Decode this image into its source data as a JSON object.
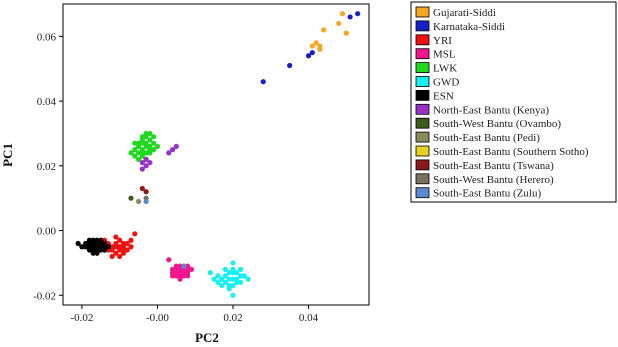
{
  "chart_data": {
    "type": "scatter",
    "title": "",
    "xlabel": "PC2",
    "ylabel": "PC1",
    "xlim": [
      -0.025,
      0.056
    ],
    "ylim": [
      -0.023,
      0.07
    ],
    "xticks": [
      -0.02,
      0.0,
      0.02,
      0.04
    ],
    "xtick_labels": [
      "-0.02",
      "-0.00",
      "0.02",
      "0.04"
    ],
    "yticks": [
      -0.02,
      0.0,
      0.02,
      0.04,
      0.06
    ],
    "ytick_labels": [
      "-0.02",
      "0.00",
      "0.02",
      "0.04",
      "0.06"
    ],
    "grid": false,
    "legend_position": "outside-right",
    "series": [
      {
        "name": "Gujarati-Siddi",
        "color": "#f5a623",
        "points": [
          [
            0.041,
            0.057
          ],
          [
            0.042,
            0.058
          ],
          [
            0.043,
            0.057
          ],
          [
            0.044,
            0.062
          ],
          [
            0.048,
            0.064
          ],
          [
            0.049,
            0.067
          ],
          [
            0.05,
            0.061
          ],
          [
            0.043,
            0.056
          ]
        ]
      },
      {
        "name": "Karnataka-Siddi",
        "color": "#1520c8",
        "points": [
          [
            0.028,
            0.046
          ],
          [
            0.035,
            0.051
          ],
          [
            0.04,
            0.054
          ],
          [
            0.041,
            0.055
          ],
          [
            0.051,
            0.066
          ],
          [
            0.053,
            0.067
          ]
        ]
      },
      {
        "name": "YRI",
        "color": "#f01010",
        "points": [
          [
            -0.012,
            -0.005
          ],
          [
            -0.011,
            -0.004
          ],
          [
            -0.01,
            -0.006
          ],
          [
            -0.009,
            -0.005
          ],
          [
            -0.013,
            -0.004
          ],
          [
            -0.011,
            -0.007
          ],
          [
            -0.01,
            -0.003
          ],
          [
            -0.008,
            -0.006
          ],
          [
            -0.012,
            -0.006
          ],
          [
            -0.009,
            -0.004
          ],
          [
            -0.007,
            -0.005
          ],
          [
            -0.011,
            -0.005
          ],
          [
            -0.013,
            -0.006
          ],
          [
            -0.01,
            -0.008
          ],
          [
            -0.008,
            -0.004
          ],
          [
            -0.014,
            -0.003
          ],
          [
            -0.009,
            -0.007
          ],
          [
            -0.012,
            -0.008
          ],
          [
            -0.011,
            -0.002
          ],
          [
            -0.01,
            -0.005
          ],
          [
            -0.007,
            -0.003
          ],
          [
            -0.013,
            -0.005
          ],
          [
            -0.009,
            -0.006
          ],
          [
            -0.006,
            -0.001
          ]
        ]
      },
      {
        "name": "MSL",
        "color": "#f0168e",
        "points": [
          [
            0.004,
            -0.012
          ],
          [
            0.005,
            -0.013
          ],
          [
            0.006,
            -0.012
          ],
          [
            0.007,
            -0.014
          ],
          [
            0.008,
            -0.013
          ],
          [
            0.005,
            -0.011
          ],
          [
            0.006,
            -0.014
          ],
          [
            0.007,
            -0.012
          ],
          [
            0.008,
            -0.011
          ],
          [
            0.006,
            -0.013
          ],
          [
            0.005,
            -0.014
          ],
          [
            0.007,
            -0.013
          ],
          [
            0.009,
            -0.012
          ],
          [
            0.004,
            -0.013
          ],
          [
            0.008,
            -0.014
          ],
          [
            0.006,
            -0.011
          ],
          [
            0.005,
            -0.012
          ],
          [
            0.007,
            -0.011
          ],
          [
            0.003,
            -0.009
          ],
          [
            0.006,
            -0.015
          ],
          [
            0.008,
            -0.012
          ],
          [
            0.004,
            -0.014
          ]
        ]
      },
      {
        "name": "LWK",
        "color": "#1fd81f",
        "points": [
          [
            -0.005,
            0.026
          ],
          [
            -0.004,
            0.025
          ],
          [
            -0.003,
            0.027
          ],
          [
            -0.002,
            0.026
          ],
          [
            -0.004,
            0.028
          ],
          [
            -0.003,
            0.024
          ],
          [
            -0.005,
            0.024
          ],
          [
            -0.002,
            0.028
          ],
          [
            -0.001,
            0.027
          ],
          [
            -0.006,
            0.025
          ],
          [
            -0.004,
            0.023
          ],
          [
            -0.003,
            0.029
          ],
          [
            -0.002,
            0.025
          ],
          [
            -0.005,
            0.027
          ],
          [
            -0.003,
            0.026
          ],
          [
            -0.001,
            0.029
          ],
          [
            -0.006,
            0.023
          ],
          [
            -0.004,
            0.027
          ],
          [
            -0.002,
            0.024
          ],
          [
            -0.003,
            0.03
          ],
          [
            -0.005,
            0.022
          ],
          [
            -0.007,
            0.024
          ],
          [
            -0.001,
            0.025
          ],
          [
            0.0,
            0.026
          ],
          [
            -0.004,
            0.029
          ],
          [
            -0.003,
            0.022
          ],
          [
            -0.006,
            0.027
          ],
          [
            -0.002,
            0.03
          ],
          [
            -0.004,
            0.024
          ]
        ]
      },
      {
        "name": "GWD",
        "color": "#16f0ee",
        "points": [
          [
            0.018,
            -0.014
          ],
          [
            0.019,
            -0.015
          ],
          [
            0.02,
            -0.013
          ],
          [
            0.021,
            -0.016
          ],
          [
            0.019,
            -0.017
          ],
          [
            0.017,
            -0.015
          ],
          [
            0.02,
            -0.015
          ],
          [
            0.022,
            -0.014
          ],
          [
            0.018,
            -0.016
          ],
          [
            0.021,
            -0.013
          ],
          [
            0.016,
            -0.014
          ],
          [
            0.019,
            -0.013
          ],
          [
            0.02,
            -0.017
          ],
          [
            0.022,
            -0.016
          ],
          [
            0.017,
            -0.017
          ],
          [
            0.018,
            -0.012
          ],
          [
            0.021,
            -0.015
          ],
          [
            0.023,
            -0.014
          ],
          [
            0.015,
            -0.015
          ],
          [
            0.02,
            -0.012
          ],
          [
            0.019,
            -0.018
          ],
          [
            0.024,
            -0.015
          ],
          [
            0.014,
            -0.013
          ],
          [
            0.02,
            -0.01
          ],
          [
            0.02,
            -0.02
          ],
          [
            0.018,
            -0.014
          ],
          [
            0.022,
            -0.012
          ],
          [
            0.016,
            -0.016
          ]
        ]
      },
      {
        "name": "ESN",
        "color": "#000000",
        "points": [
          [
            -0.018,
            -0.004
          ],
          [
            -0.017,
            -0.005
          ],
          [
            -0.016,
            -0.004
          ],
          [
            -0.015,
            -0.006
          ],
          [
            -0.017,
            -0.003
          ],
          [
            -0.016,
            -0.005
          ],
          [
            -0.018,
            -0.006
          ],
          [
            -0.015,
            -0.004
          ],
          [
            -0.014,
            -0.005
          ],
          [
            -0.019,
            -0.005
          ],
          [
            -0.017,
            -0.006
          ],
          [
            -0.016,
            -0.003
          ],
          [
            -0.015,
            -0.005
          ],
          [
            -0.018,
            -0.005
          ],
          [
            -0.014,
            -0.004
          ],
          [
            -0.016,
            -0.006
          ],
          [
            -0.017,
            -0.004
          ],
          [
            -0.019,
            -0.004
          ],
          [
            -0.015,
            -0.003
          ],
          [
            -0.016,
            -0.007
          ],
          [
            -0.02,
            -0.005
          ],
          [
            -0.014,
            -0.006
          ],
          [
            -0.013,
            -0.005
          ],
          [
            -0.021,
            -0.004
          ],
          [
            -0.018,
            -0.003
          ],
          [
            -0.017,
            -0.007
          ]
        ]
      },
      {
        "name": "North-East Bantu (Kenya)",
        "color": "#9b30c8",
        "points": [
          [
            -0.004,
            0.021
          ],
          [
            -0.003,
            0.022
          ],
          [
            -0.002,
            0.021
          ],
          [
            -0.003,
            0.02
          ],
          [
            -0.004,
            0.019
          ],
          [
            0.004,
            0.025
          ],
          [
            0.005,
            0.026
          ],
          [
            0.003,
            0.024
          ]
        ]
      },
      {
        "name": "South-West Bantu (Ovambo)",
        "color": "#3d5a1e",
        "points": [
          [
            -0.007,
            0.01
          ]
        ]
      },
      {
        "name": "South-East Bantu (Pedi)",
        "color": "#8a8a5a",
        "points": [
          [
            -0.005,
            0.009
          ]
        ]
      },
      {
        "name": "South-East Bantu (Southern Sotho)",
        "color": "#e8d020",
        "points": []
      },
      {
        "name": "South-East Bantu (Tswana)",
        "color": "#8b1a1a",
        "points": [
          [
            -0.003,
            0.012
          ],
          [
            -0.004,
            0.013
          ]
        ]
      },
      {
        "name": "South-West Bantu (Herero)",
        "color": "#7a7060",
        "points": [
          [
            -0.003,
            0.01
          ]
        ]
      },
      {
        "name": "South-East Bantu (Zulu)",
        "color": "#5b8ad0",
        "points": [
          [
            -0.003,
            0.009
          ],
          [
            0.007,
            -0.011
          ]
        ]
      }
    ]
  }
}
